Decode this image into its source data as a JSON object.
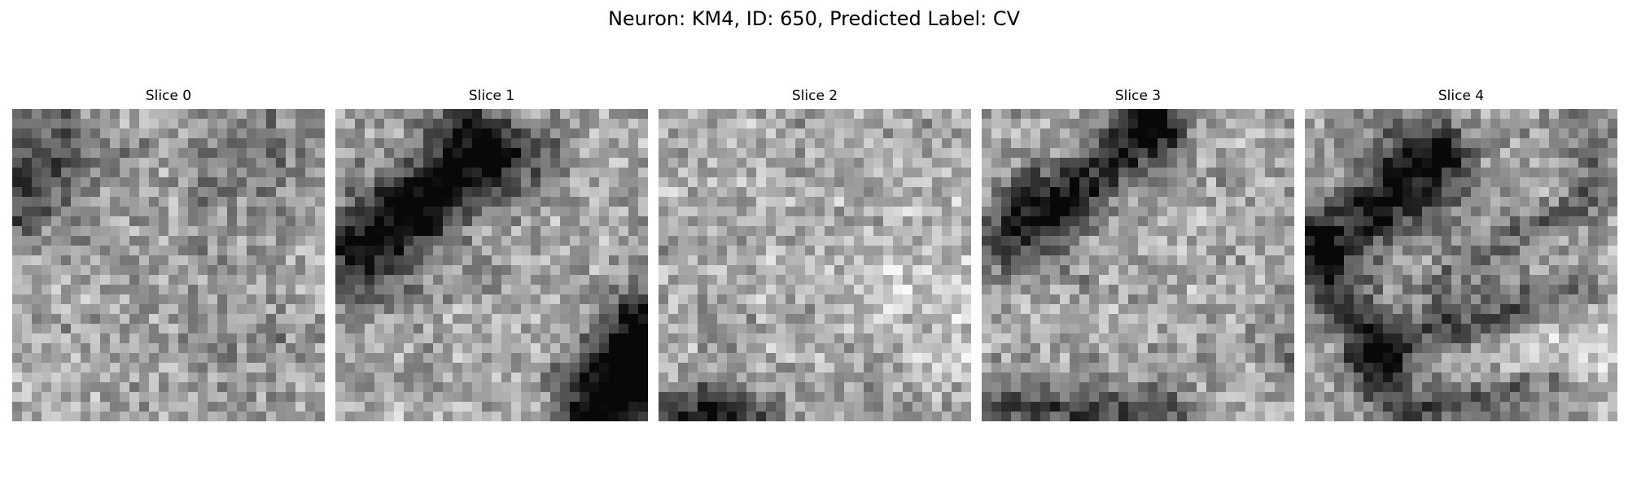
{
  "figure": {
    "title": "Neuron: KM4, ID: 650, Predicted Label: CV",
    "colormap": "gray",
    "grid_size": 32
  },
  "slices": [
    {
      "title": "Slice 0"
    },
    {
      "title": "Slice 1"
    },
    {
      "title": "Slice 2"
    },
    {
      "title": "Slice 3"
    },
    {
      "title": "Slice 4"
    }
  ]
}
